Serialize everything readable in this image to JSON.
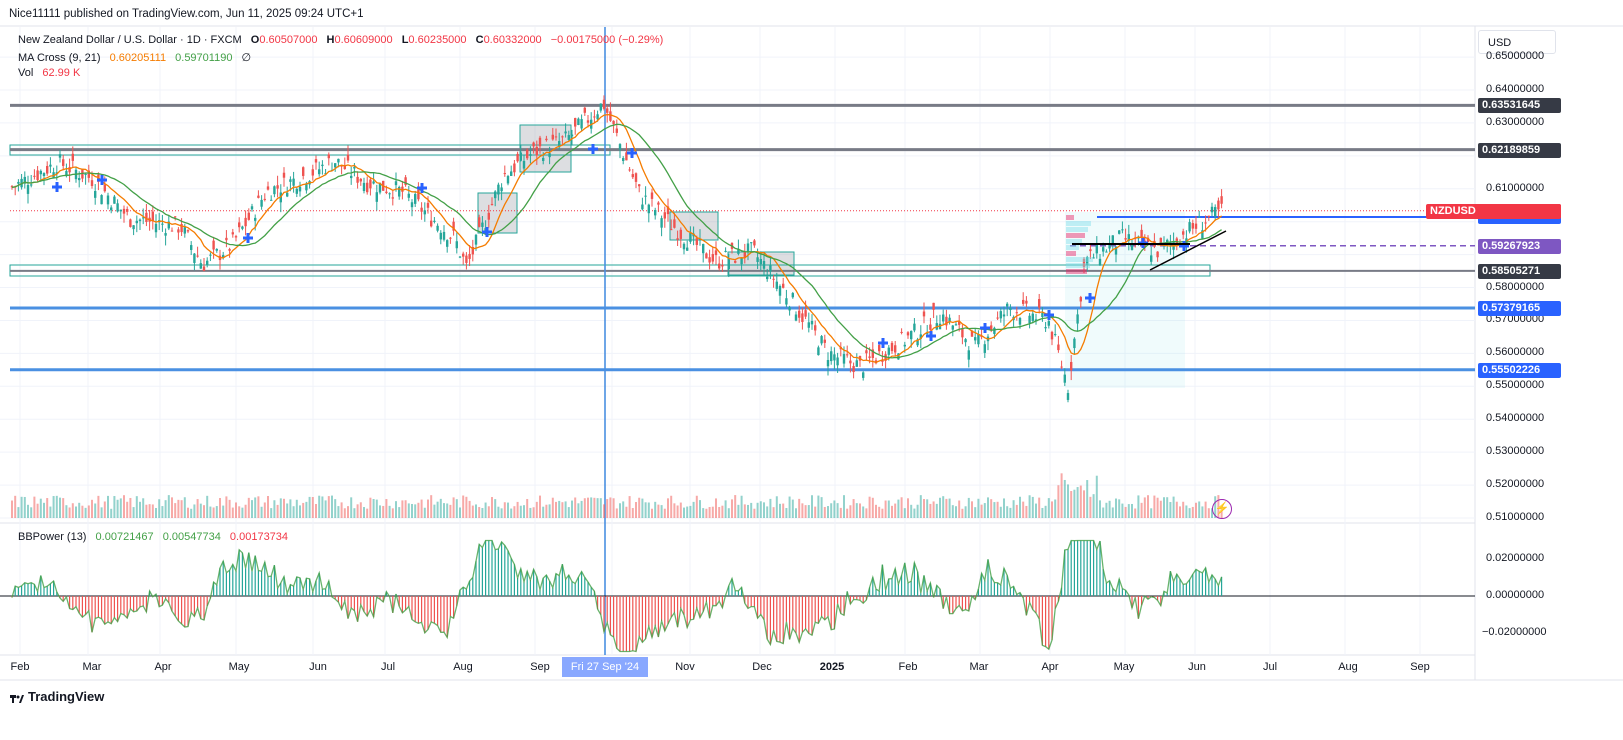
{
  "header": {
    "published": "Nice11111 published on TradingView.com, Jun 11, 2025 09:24 UTC+1"
  },
  "main_legend": {
    "symbol": "New Zealand Dollar / U.S. Dollar · 1D · FXCM",
    "open_label": "O",
    "open": "0.60507000",
    "high_label": "H",
    "high": "0.60609000",
    "low_label": "L",
    "low": "0.60235000",
    "close_label": "C",
    "close": "0.60332000",
    "change": "−0.00175000 (−0.29%)"
  },
  "ma_legend": {
    "name": "MA Cross (9, 21)",
    "fast": "0.60205111",
    "slow": "0.59701190",
    "settings": "∅"
  },
  "vol_legend": {
    "name": "Vol",
    "value": "62.99 K"
  },
  "bbp_legend": {
    "name": "BBPower (13)",
    "v1": "0.00721467",
    "v2": "0.00547734",
    "v3": "0.00173734"
  },
  "currency_button": "USD",
  "price_axis_labels": [
    "0.65000000",
    "0.64000000",
    "0.63000000",
    "0.61000000",
    "0.58000000",
    "0.57000000",
    "0.56000000",
    "0.55000000",
    "0.54000000",
    "0.53000000",
    "0.52000000",
    "0.51000000"
  ],
  "price_tags": [
    {
      "label": "0.63531645",
      "value": 0.63531645,
      "color": "#363a45"
    },
    {
      "label": "0.62189859",
      "value": 0.62189859,
      "color": "#363a45"
    },
    {
      "label": "0.60332000",
      "value": 0.60332,
      "color": "#f23645"
    },
    {
      "label": "0.60182000",
      "value": 0.60182,
      "color": "#2962ff"
    },
    {
      "label": "0.59267923",
      "value": 0.59267923,
      "color": "#7e57c2"
    },
    {
      "label": "0.58505271",
      "value": 0.58505271,
      "color": "#363a45"
    },
    {
      "label": "0.57379165",
      "value": 0.57379165,
      "color": "#2962ff"
    },
    {
      "label": "0.55502226",
      "value": 0.55502226,
      "color": "#2962ff"
    }
  ],
  "symbol_tag": "NZDUSD",
  "bbp_axis_labels": [
    "0.02000000",
    "0.00000000",
    "−0.02000000"
  ],
  "time_axis_labels": [
    "Feb",
    "Mar",
    "Apr",
    "May",
    "Jun",
    "Jul",
    "Aug",
    "Sep",
    "Nov",
    "Dec",
    "2025",
    "Feb",
    "Mar",
    "Apr",
    "May",
    "Jun",
    "Jul",
    "Aug",
    "Sep"
  ],
  "crosshair_date": "Fri 27 Sep '24",
  "footer": {
    "brand": "TradingView"
  },
  "colors": {
    "up": "#26a69a",
    "down": "#ef5350",
    "ma_fast": "#f57c00",
    "ma_slow": "#43a047",
    "level_grey": "#787b86",
    "level_blue": "#2962ff"
  },
  "chart_data": {
    "type": "candlestick",
    "symbol": "NZDUSD",
    "timeframe": "1D",
    "price_range": [
      0.505,
      0.655
    ],
    "close_path": [
      [
        "2024-02-01",
        0.6105
      ],
      [
        "2024-02-20",
        0.618
      ],
      [
        "2024-03-05",
        0.613
      ],
      [
        "2024-03-20",
        0.601
      ],
      [
        "2024-04-10",
        0.5985
      ],
      [
        "2024-04-19",
        0.587
      ],
      [
        "2024-05-01",
        0.593
      ],
      [
        "2024-05-15",
        0.609
      ],
      [
        "2024-05-31",
        0.614
      ],
      [
        "2024-06-12",
        0.6185
      ],
      [
        "2024-06-25",
        0.612
      ],
      [
        "2024-07-10",
        0.609
      ],
      [
        "2024-07-31",
        0.595
      ],
      [
        "2024-08-05",
        0.586
      ],
      [
        "2024-08-20",
        0.614
      ],
      [
        "2024-09-01",
        0.621
      ],
      [
        "2024-09-15",
        0.625
      ],
      [
        "2024-09-30",
        0.636
      ],
      [
        "2024-10-15",
        0.608
      ],
      [
        "2024-10-31",
        0.597
      ],
      [
        "2024-11-15",
        0.588
      ],
      [
        "2024-11-30",
        0.591
      ],
      [
        "2024-12-15",
        0.577
      ],
      [
        "2024-12-31",
        0.56
      ],
      [
        "2025-01-13",
        0.556
      ],
      [
        "2025-01-31",
        0.564
      ],
      [
        "2025-02-15",
        0.572
      ],
      [
        "2025-03-01",
        0.562
      ],
      [
        "2025-03-15",
        0.574
      ],
      [
        "2025-03-31",
        0.57
      ],
      [
        "2025-04-08",
        0.55
      ],
      [
        "2025-04-15",
        0.588
      ],
      [
        "2025-04-30",
        0.595
      ],
      [
        "2025-05-15",
        0.591
      ],
      [
        "2025-05-31",
        0.599
      ],
      [
        "2025-06-10",
        0.6033
      ]
    ],
    "horizontal_levels": [
      0.63531645,
      0.62189859,
      0.60182,
      0.59267923,
      0.58505271,
      0.57379165,
      0.55502226
    ],
    "bbpower_range": [
      -0.03,
      0.03
    ],
    "volume_scale_max_k": 200
  }
}
